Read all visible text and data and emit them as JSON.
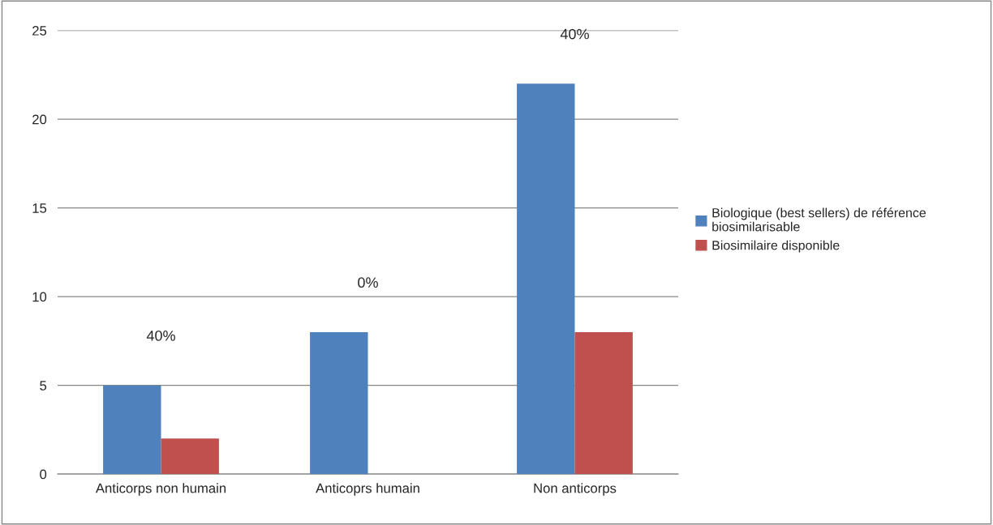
{
  "chart_data": {
    "type": "bar",
    "categories": [
      "Anticorps non humain",
      "Anticoprs humain",
      "Non anticorps"
    ],
    "series": [
      {
        "name": "Biologique (best sellers) de référence biosimilarisable",
        "color": "#4f81bd",
        "values": [
          5,
          8,
          22
        ]
      },
      {
        "name": "Biosimilaire disponible",
        "color": "#c0504d",
        "values": [
          2,
          0,
          8
        ]
      }
    ],
    "ylim": [
      0,
      25
    ],
    "yticks": [
      0,
      5,
      10,
      15,
      20,
      25
    ],
    "grid": "y",
    "legend": "right",
    "annotations": [
      "40%",
      "0%",
      "40%"
    ]
  }
}
